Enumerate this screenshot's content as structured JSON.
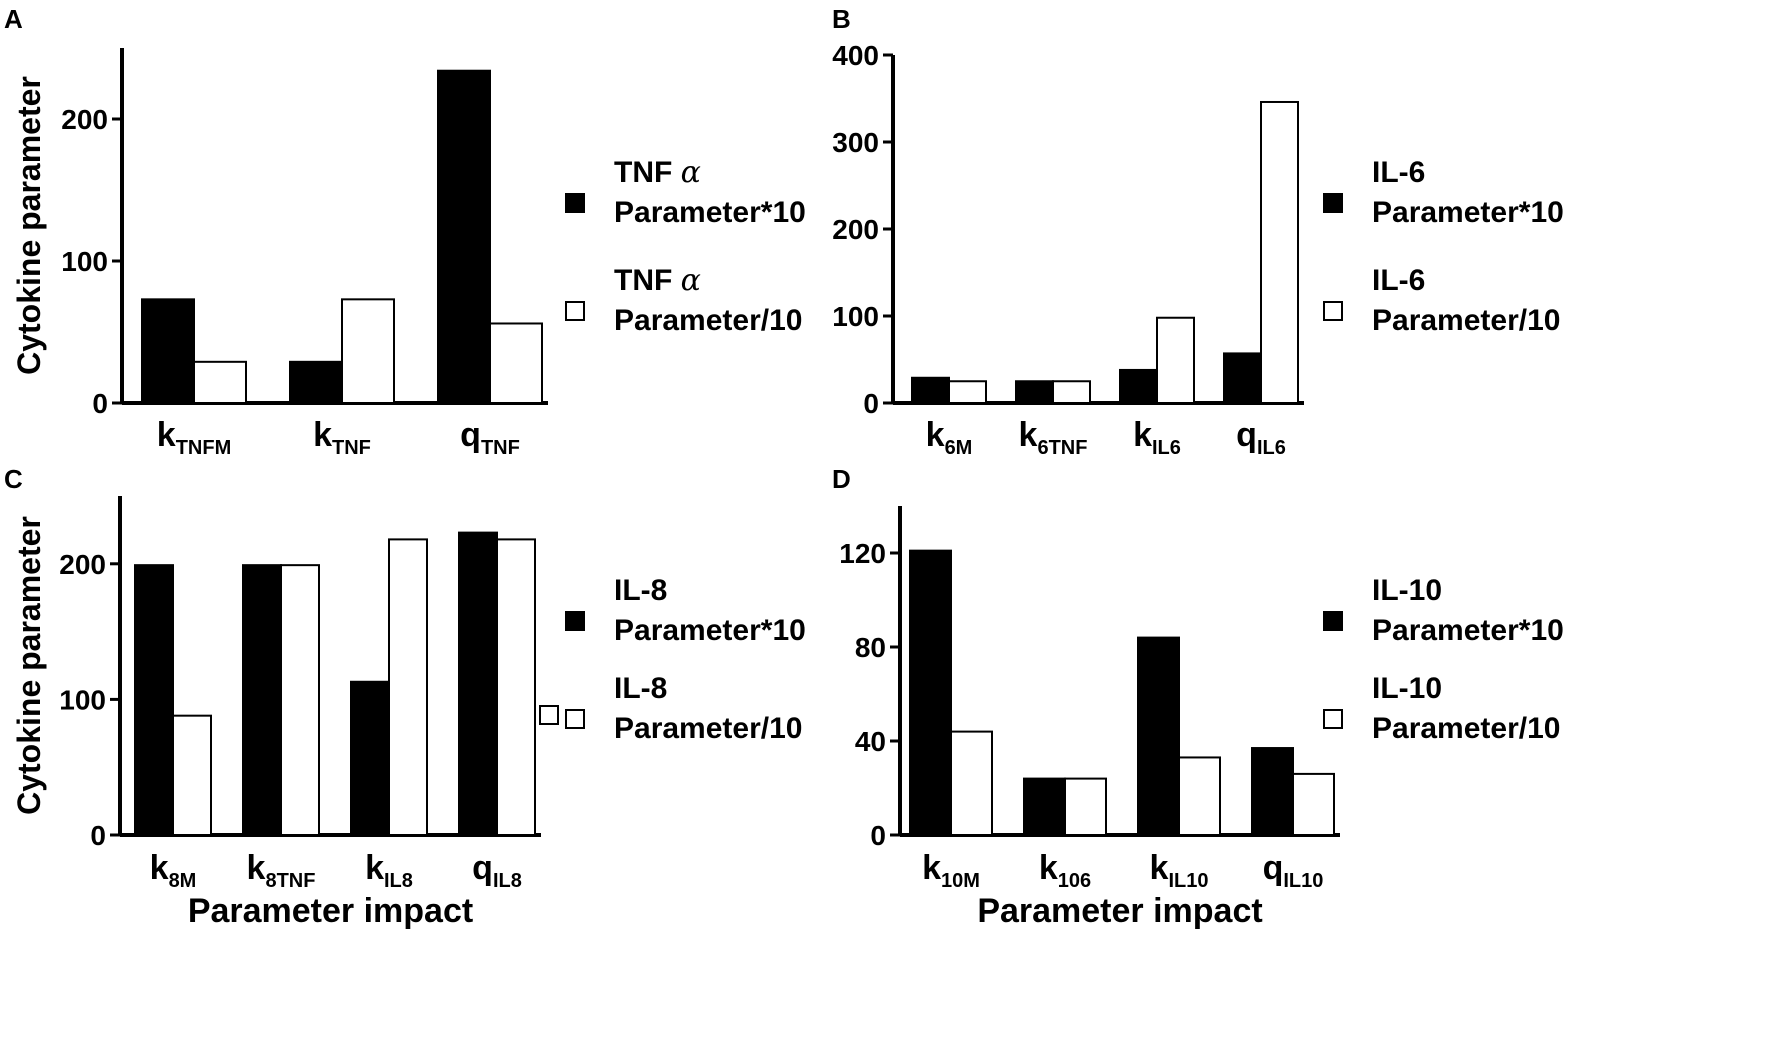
{
  "chart_data": [
    {
      "type": "bar",
      "panel": "A",
      "ylabel": "Cytokine parameter",
      "xlabel": "",
      "ylim": [
        0,
        250
      ],
      "yticks": [
        0,
        100,
        200
      ],
      "categories": [
        {
          "main": "k",
          "sub": "TNFM"
        },
        {
          "main": "k",
          "sub": "TNF"
        },
        {
          "main": "q",
          "sub": "TNF"
        }
      ],
      "series": [
        {
          "name": "TNF α Parameter*10",
          "label_line1": "TNF ",
          "label_greek": "α",
          "label_line2": "Parameter*10",
          "fill": "dark",
          "values": [
            73,
            29,
            234
          ]
        },
        {
          "name": "TNF α Parameter/10",
          "label_line1": "TNF ",
          "label_greek": "α",
          "label_line2": "Parameter/10",
          "fill": "light",
          "values": [
            29,
            73,
            56
          ]
        }
      ]
    },
    {
      "type": "bar",
      "panel": "B",
      "ylabel": "",
      "xlabel": "",
      "ylim": [
        0,
        400
      ],
      "yticks": [
        0,
        100,
        200,
        300,
        400
      ],
      "categories": [
        {
          "main": "k",
          "sub": "6M"
        },
        {
          "main": "k",
          "sub": "6TNF"
        },
        {
          "main": "k",
          "sub": "IL6"
        },
        {
          "main": "q",
          "sub": "IL6"
        }
      ],
      "series": [
        {
          "name": "IL-6 Parameter*10",
          "label_line1": "IL-6",
          "label_greek": "",
          "label_line2": "Parameter*10",
          "fill": "dark",
          "values": [
            29,
            25,
            38,
            57
          ]
        },
        {
          "name": "IL-6 Parameter/10",
          "label_line1": "IL-6",
          "label_greek": "",
          "label_line2": "Parameter/10",
          "fill": "light",
          "values": [
            25,
            25,
            98,
            346
          ]
        }
      ]
    },
    {
      "type": "bar",
      "panel": "C",
      "ylabel": "Cytokine parameter",
      "xlabel": "Parameter impact",
      "ylim": [
        0,
        250
      ],
      "yticks": [
        0,
        100,
        200
      ],
      "categories": [
        {
          "main": "k",
          "sub": "8M"
        },
        {
          "main": "k",
          "sub": "8TNF"
        },
        {
          "main": "k",
          "sub": "IL8"
        },
        {
          "main": "q",
          "sub": "IL8"
        }
      ],
      "series": [
        {
          "name": "IL-8 Parameter*10",
          "label_line1": "IL-8",
          "label_greek": "",
          "label_line2": "Parameter*10",
          "fill": "dark",
          "values": [
            199,
            199,
            113,
            223
          ]
        },
        {
          "name": "IL-8 Parameter/10",
          "label_line1": "IL-8",
          "label_greek": "",
          "label_line2": "Parameter/10",
          "fill": "light",
          "values": [
            88,
            199,
            218,
            218
          ]
        }
      ]
    },
    {
      "type": "bar",
      "panel": "D",
      "ylabel": "",
      "xlabel": "Parameter impact",
      "ylim": [
        0,
        140
      ],
      "yticks": [
        0,
        40,
        80,
        120
      ],
      "categories": [
        {
          "main": "k",
          "sub": "10M"
        },
        {
          "main": "k",
          "sub": "106"
        },
        {
          "main": "k",
          "sub": "IL10"
        },
        {
          "main": "q",
          "sub": "IL10"
        }
      ],
      "series": [
        {
          "name": "IL-10 Parameter*10",
          "label_line1": "IL-10",
          "label_greek": "",
          "label_line2": "Parameter*10",
          "fill": "dark",
          "values": [
            121,
            24,
            84,
            37
          ]
        },
        {
          "name": "IL-10 Parameter/10",
          "label_line1": "IL-10",
          "label_greek": "",
          "label_line2": "Parameter/10",
          "fill": "light",
          "values": [
            44,
            24,
            33,
            26
          ]
        }
      ]
    }
  ]
}
